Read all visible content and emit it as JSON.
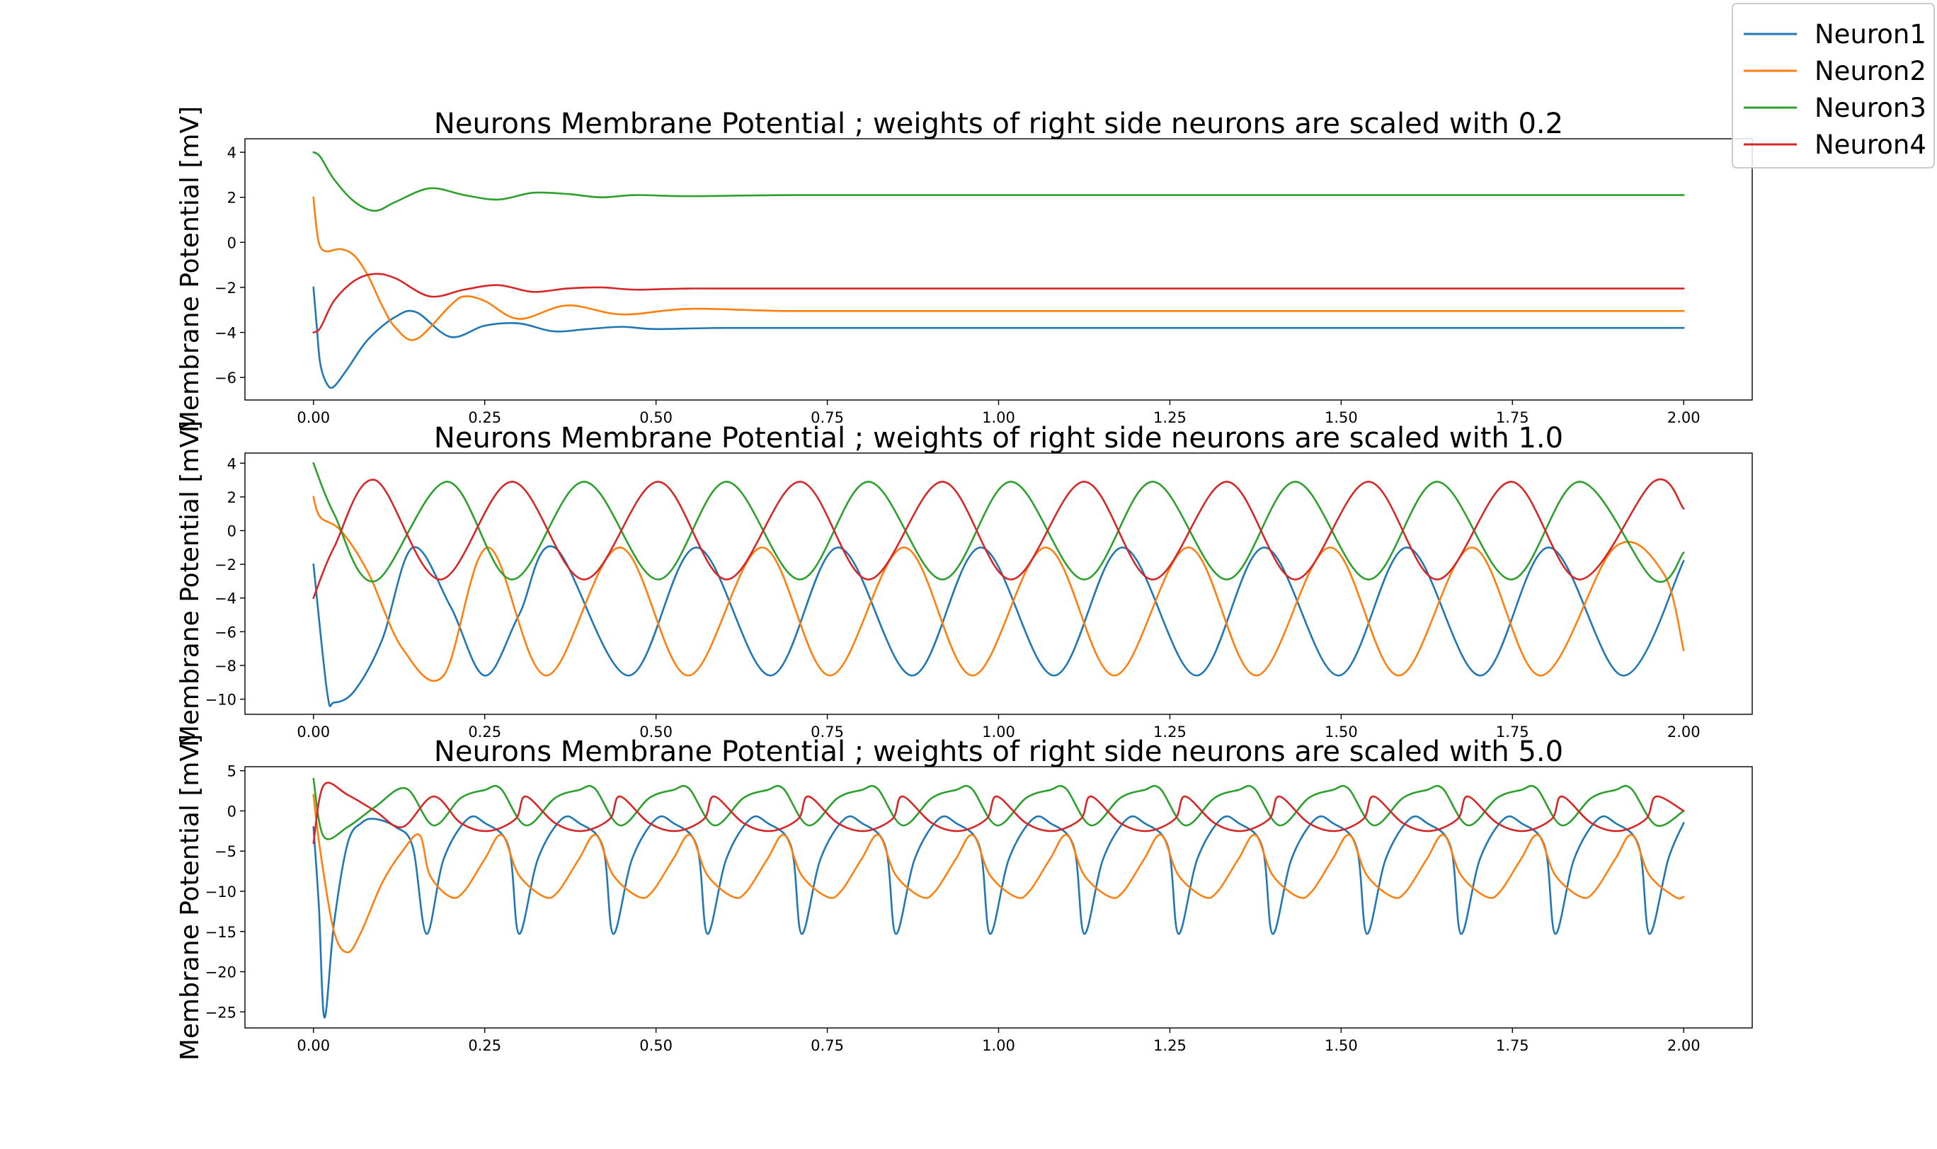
{
  "chart_data": [
    {
      "type": "line",
      "title": "Neurons Membrane Potential ; weights of right side neurons are scaled with 0.2",
      "xlabel": "",
      "ylabel": "Membrane Potential [mV]",
      "xlim": [
        -0.1,
        2.1
      ],
      "ylim": [
        -7.0,
        4.6
      ],
      "xticks": [
        "0.00",
        "0.25",
        "0.50",
        "0.75",
        "1.00",
        "1.25",
        "1.50",
        "1.75",
        "2.00"
      ],
      "yticks": [
        "4",
        "2",
        "0",
        "−2",
        "−4",
        "−6"
      ],
      "series": [
        {
          "name": "Neuron1",
          "x": [
            0,
            0.005,
            0.01,
            0.02,
            0.03,
            0.05,
            0.08,
            0.12,
            0.15,
            0.2,
            0.25,
            0.3,
            0.35,
            0.4,
            0.45,
            0.5,
            0.6,
            0.8,
            1.0,
            1.5,
            2.0
          ],
          "y": [
            -2.0,
            -3.8,
            -5.4,
            -6.3,
            -6.4,
            -5.6,
            -4.3,
            -3.3,
            -3.1,
            -4.2,
            -3.7,
            -3.6,
            -3.95,
            -3.85,
            -3.75,
            -3.85,
            -3.8,
            -3.8,
            -3.8,
            -3.8,
            -3.8
          ]
        },
        {
          "name": "Neuron2",
          "x": [
            0,
            0.005,
            0.01,
            0.02,
            0.04,
            0.06,
            0.08,
            0.1,
            0.12,
            0.15,
            0.2,
            0.22,
            0.25,
            0.3,
            0.37,
            0.45,
            0.55,
            0.7,
            1.0,
            1.5,
            2.0
          ],
          "y": [
            2.0,
            0.5,
            -0.2,
            -0.4,
            -0.3,
            -0.6,
            -1.5,
            -2.8,
            -3.8,
            -4.3,
            -2.8,
            -2.4,
            -2.6,
            -3.4,
            -2.8,
            -3.2,
            -2.95,
            -3.05,
            -3.05,
            -3.05,
            -3.05
          ]
        },
        {
          "name": "Neuron3",
          "x": [
            0,
            0.01,
            0.03,
            0.06,
            0.09,
            0.12,
            0.17,
            0.22,
            0.27,
            0.32,
            0.37,
            0.42,
            0.47,
            0.55,
            0.7,
            1.0,
            1.5,
            2.0
          ],
          "y": [
            4.0,
            3.8,
            2.8,
            1.8,
            1.4,
            1.8,
            2.4,
            2.1,
            1.9,
            2.2,
            2.15,
            2.0,
            2.1,
            2.05,
            2.1,
            2.1,
            2.1,
            2.1
          ]
        },
        {
          "name": "Neuron4",
          "x": [
            0,
            0.01,
            0.03,
            0.06,
            0.09,
            0.12,
            0.17,
            0.22,
            0.27,
            0.32,
            0.37,
            0.42,
            0.47,
            0.55,
            0.7,
            1.0,
            1.5,
            2.0
          ],
          "y": [
            -4.0,
            -3.8,
            -2.6,
            -1.7,
            -1.4,
            -1.6,
            -2.4,
            -2.1,
            -1.9,
            -2.2,
            -2.05,
            -2.0,
            -2.1,
            -2.05,
            -2.05,
            -2.05,
            -2.05,
            -2.05
          ]
        }
      ]
    },
    {
      "type": "line",
      "title": "Neurons Membrane Potential ; weights of right side neurons are scaled with 1.0",
      "xlabel": "",
      "ylabel": "Membrane Potential [mV]",
      "xlim": [
        -0.1,
        2.1
      ],
      "ylim": [
        -10.9,
        4.6
      ],
      "xticks": [
        "0.00",
        "0.25",
        "0.50",
        "0.75",
        "1.00",
        "1.25",
        "1.50",
        "1.75",
        "2.00"
      ],
      "yticks": [
        "4",
        "2",
        "0",
        "−2",
        "−4",
        "−6",
        "−8",
        "−10"
      ],
      "oscillation_period": 0.2075,
      "series": [
        {
          "name": "Neuron1",
          "x": [
            0,
            0.02,
            0.03,
            0.06,
            0.1,
            0.145,
            0.2,
            0.25,
            0.3,
            0.352,
            0.46,
            0.559,
            0.667,
            0.766,
            0.874,
            0.974,
            1.081,
            1.181,
            1.289,
            1.388,
            1.496,
            1.596,
            1.703,
            1.803,
            1.911,
            2.0
          ],
          "y": [
            -2.0,
            -9.6,
            -10.2,
            -9.5,
            -6.5,
            -1.0,
            -4.5,
            -8.6,
            -5.0,
            -1.0,
            -8.6,
            -1.0,
            -8.6,
            -1.0,
            -8.6,
            -1.0,
            -8.6,
            -1.0,
            -8.6,
            -1.0,
            -8.6,
            -1.0,
            -8.6,
            -1.0,
            -8.6,
            -1.8
          ]
        },
        {
          "name": "Neuron2",
          "x": [
            0,
            0.01,
            0.04,
            0.08,
            0.13,
            0.19,
            0.255,
            0.34,
            0.447,
            0.547,
            0.655,
            0.754,
            0.862,
            0.962,
            1.069,
            1.169,
            1.277,
            1.376,
            1.484,
            1.584,
            1.691,
            1.791,
            1.899,
            1.97,
            2.0
          ],
          "y": [
            2.0,
            0.8,
            0.0,
            -2.5,
            -7.0,
            -8.6,
            -1.0,
            -8.6,
            -1.0,
            -8.6,
            -1.0,
            -8.6,
            -1.0,
            -8.6,
            -1.0,
            -8.6,
            -1.0,
            -8.6,
            -1.0,
            -8.6,
            -1.0,
            -8.6,
            -1.0,
            -2.5,
            -7.1
          ]
        },
        {
          "name": "Neuron3",
          "x": [
            0,
            0.03,
            0.09,
            0.195,
            0.29,
            0.395,
            0.503,
            0.603,
            0.71,
            0.81,
            0.918,
            1.018,
            1.125,
            1.225,
            1.333,
            1.433,
            1.54,
            1.64,
            1.748,
            1.848,
            1.956,
            2.0
          ],
          "y": [
            4.0,
            1.0,
            -3.0,
            2.9,
            -2.9,
            2.9,
            -2.9,
            2.9,
            -2.9,
            2.9,
            -2.9,
            2.9,
            -2.9,
            2.9,
            -2.9,
            2.9,
            -2.9,
            2.9,
            -2.9,
            2.9,
            -2.9,
            -1.3
          ]
        },
        {
          "name": "Neuron4",
          "x": [
            0,
            0.03,
            0.09,
            0.185,
            0.29,
            0.395,
            0.503,
            0.603,
            0.71,
            0.81,
            0.918,
            1.018,
            1.125,
            1.225,
            1.333,
            1.433,
            1.54,
            1.64,
            1.748,
            1.848,
            1.956,
            2.0
          ],
          "y": [
            -4.0,
            -1.0,
            3.0,
            -2.9,
            2.9,
            -2.9,
            2.9,
            -2.9,
            2.9,
            -2.9,
            2.9,
            -2.9,
            2.9,
            -2.9,
            2.9,
            -2.9,
            2.9,
            -2.9,
            2.9,
            -2.9,
            2.9,
            1.3
          ]
        }
      ]
    },
    {
      "type": "line",
      "title": "Neurons Membrane Potential ; weights of right side neurons are scaled with 5.0",
      "xlabel": "",
      "ylabel": "Membrane Potential [mV]",
      "xlim": [
        -0.1,
        2.1
      ],
      "ylim": [
        -27.0,
        5.5
      ],
      "xticks": [
        "0.00",
        "0.25",
        "0.50",
        "0.75",
        "1.00",
        "1.25",
        "1.50",
        "1.75",
        "2.00"
      ],
      "yticks": [
        "5",
        "0",
        "−5",
        "−10",
        "−15",
        "−20",
        "−25"
      ],
      "oscillation_period": 0.1375,
      "series": [
        {
          "name": "Neuron1",
          "x": [
            0,
            0.008,
            0.016,
            0.03,
            0.05,
            0.07,
            0.09,
            0.12,
            0.145,
            0.165,
            0.19,
            0.225,
            0.25,
            0.285,
            0.3
          ],
          "y": [
            -2.0,
            -12.0,
            -25.7,
            -14.0,
            -4.0,
            -1.5,
            -1.0,
            -2.0,
            -4.5,
            -15.3,
            -6.0,
            -1.0,
            -1.5,
            -4.5,
            -15.3
          ],
          "repeat_from_x": 0.165,
          "repeat_period": 0.1375,
          "end_y": -1.5
        },
        {
          "name": "Neuron2",
          "x": [
            0,
            0.01,
            0.03,
            0.05,
            0.07,
            0.1,
            0.13,
            0.155,
            0.17,
            0.2,
            0.22,
            0.25,
            0.275,
            0.3
          ],
          "y": [
            2.0,
            -5.0,
            -15.0,
            -17.6,
            -15.0,
            -9.0,
            -5.0,
            -3.0,
            -8.0,
            -10.7,
            -10.0,
            -6.0,
            -3.0,
            -8.0
          ],
          "repeat_from_x": 0.17,
          "repeat_period": 0.1375,
          "end_y": -10.7
        },
        {
          "name": "Neuron3",
          "x": [
            0,
            0.015,
            0.05,
            0.09,
            0.135,
            0.175,
            0.215,
            0.25,
            0.273,
            0.31
          ],
          "y": [
            4.0,
            -3.2,
            -2.0,
            0.5,
            2.8,
            -1.8,
            1.6,
            2.6,
            2.8,
            -1.8
          ],
          "repeat_from_x": 0.175,
          "repeat_period": 0.1375,
          "end_y": 0.0
        },
        {
          "name": "Neuron4",
          "x": [
            0,
            0.015,
            0.05,
            0.09,
            0.13,
            0.175,
            0.215,
            0.255,
            0.295,
            0.31
          ],
          "y": [
            -4.0,
            3.2,
            2.0,
            0.0,
            -2.0,
            1.8,
            -1.5,
            -2.5,
            -1.0,
            1.8
          ],
          "repeat_from_x": 0.175,
          "repeat_period": 0.1375,
          "end_y": 0.0
        }
      ]
    }
  ],
  "legend": {
    "placement": "top-right",
    "entries": [
      {
        "name": "Neuron1",
        "color": "#1f77b4"
      },
      {
        "name": "Neuron2",
        "color": "#ff7f0e"
      },
      {
        "name": "Neuron3",
        "color": "#2ca02c"
      },
      {
        "name": "Neuron4",
        "color": "#d62728"
      }
    ]
  },
  "colors": {
    "Neuron1": "#1f77b4",
    "Neuron2": "#ff7f0e",
    "Neuron3": "#2ca02c",
    "Neuron4": "#d62728"
  }
}
